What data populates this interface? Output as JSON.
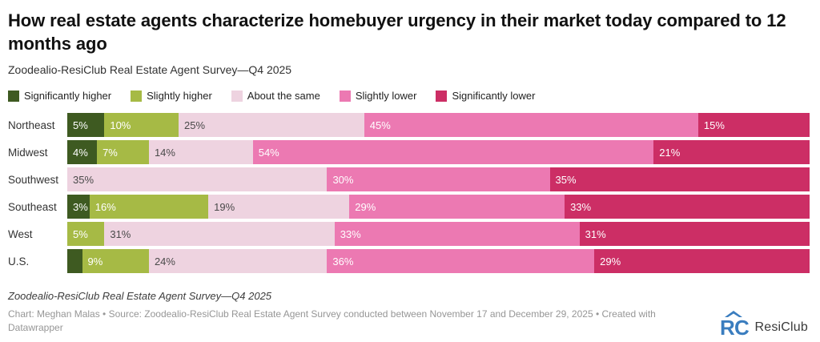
{
  "title": "How real estate agents characterize homebuyer urgency in their market today compared to 12 months ago",
  "subtitle": "Zoodealio-ResiClub Real Estate Agent Survey—Q4 2025",
  "colors": {
    "significantly_higher": "#3e5a21",
    "slightly_higher": "#a6ba45",
    "about_the_same": "#eed3e0",
    "slightly_lower": "#ec79b2",
    "significantly_lower": "#cc2e65",
    "brand_blue": "#3a7dbf"
  },
  "chart_data": {
    "type": "bar",
    "stacked": true,
    "orientation": "horizontal",
    "value_suffix": "%",
    "xlim": [
      0,
      100
    ],
    "grid": false,
    "legend_position": "top",
    "label_min": 3,
    "categories": [
      "Northeast",
      "Midwest",
      "Southwest",
      "Southeast",
      "West",
      "U.S."
    ],
    "series": [
      {
        "name": "Significantly higher",
        "color": "#3e5a21",
        "label_color": "#ffffff",
        "values": [
          5,
          4,
          0,
          3,
          0,
          2
        ]
      },
      {
        "name": "Slightly higher",
        "color": "#a6ba45",
        "label_color": "#ffffff",
        "values": [
          10,
          7,
          0,
          16,
          5,
          9
        ]
      },
      {
        "name": "About the same",
        "color": "#eed3e0",
        "label_color": "#4a4a4a",
        "values": [
          25,
          14,
          35,
          19,
          31,
          24
        ]
      },
      {
        "name": "Slightly lower",
        "color": "#ec79b2",
        "label_color": "#ffffff",
        "values": [
          45,
          54,
          30,
          29,
          33,
          36
        ]
      },
      {
        "name": "Significantly lower",
        "color": "#cc2e65",
        "label_color": "#ffffff",
        "values": [
          15,
          21,
          35,
          33,
          31,
          29
        ]
      }
    ]
  },
  "footer": {
    "note": "Zoodealio-ResiClub Real Estate Agent Survey—Q4 2025",
    "credit": "Chart: Meghan Malas • Source: Zoodealio-ResiClub Real Estate Agent Survey conducted between November 17 and December 29, 2025 • Created with Datawrapper",
    "logo_text": "ResiClub"
  }
}
